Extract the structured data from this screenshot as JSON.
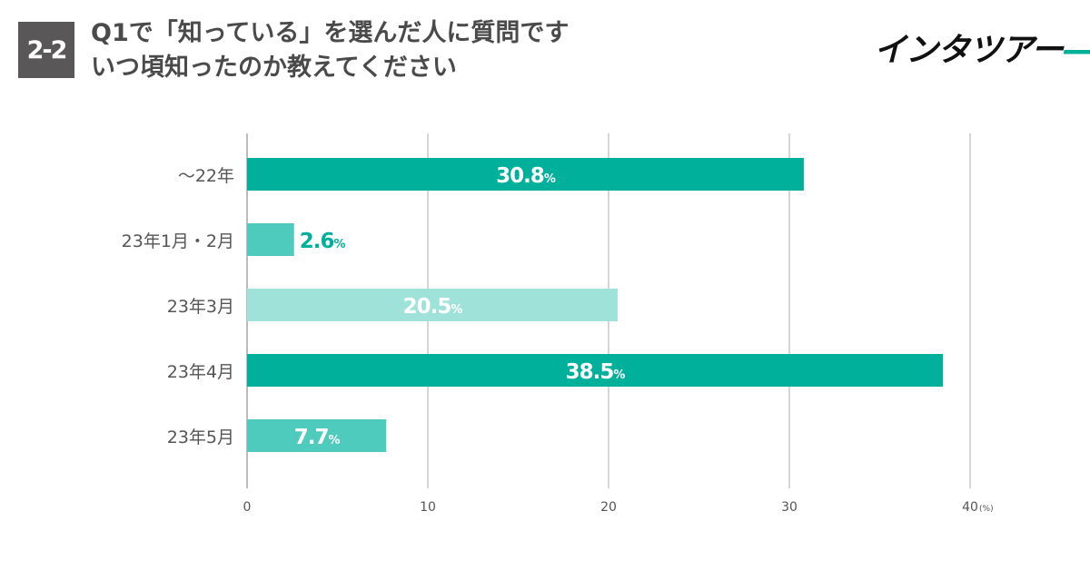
{
  "badge": "2-2",
  "title": {
    "line1": "Q1で「知っている」を選んだ人に質問です",
    "line2": "いつ頃知ったのか教えてください"
  },
  "logo": {
    "text": "インタツアー",
    "accent_color": "#00b09b"
  },
  "chart_data": {
    "type": "bar",
    "orientation": "horizontal",
    "categories": [
      "〜22年",
      "23年1月・2月",
      "23年3月",
      "23年4月",
      "23年5月"
    ],
    "values": [
      30.8,
      2.6,
      20.5,
      38.5,
      7.7
    ],
    "value_labels": [
      "30.8",
      "2.6",
      "20.5",
      "38.5",
      "7.7"
    ],
    "value_suffix": "%",
    "colors": [
      "#00b09b",
      "#4fcbbd",
      "#9fe2da",
      "#00b09b",
      "#4fcbbd"
    ],
    "label_color_inside": "#ffffff",
    "label_color_outside": "#00b09b",
    "xlim": [
      0,
      40
    ],
    "xticks": [
      0,
      10,
      20,
      30,
      40
    ],
    "x_unit": "(%)",
    "grid": true,
    "legend": "none"
  }
}
